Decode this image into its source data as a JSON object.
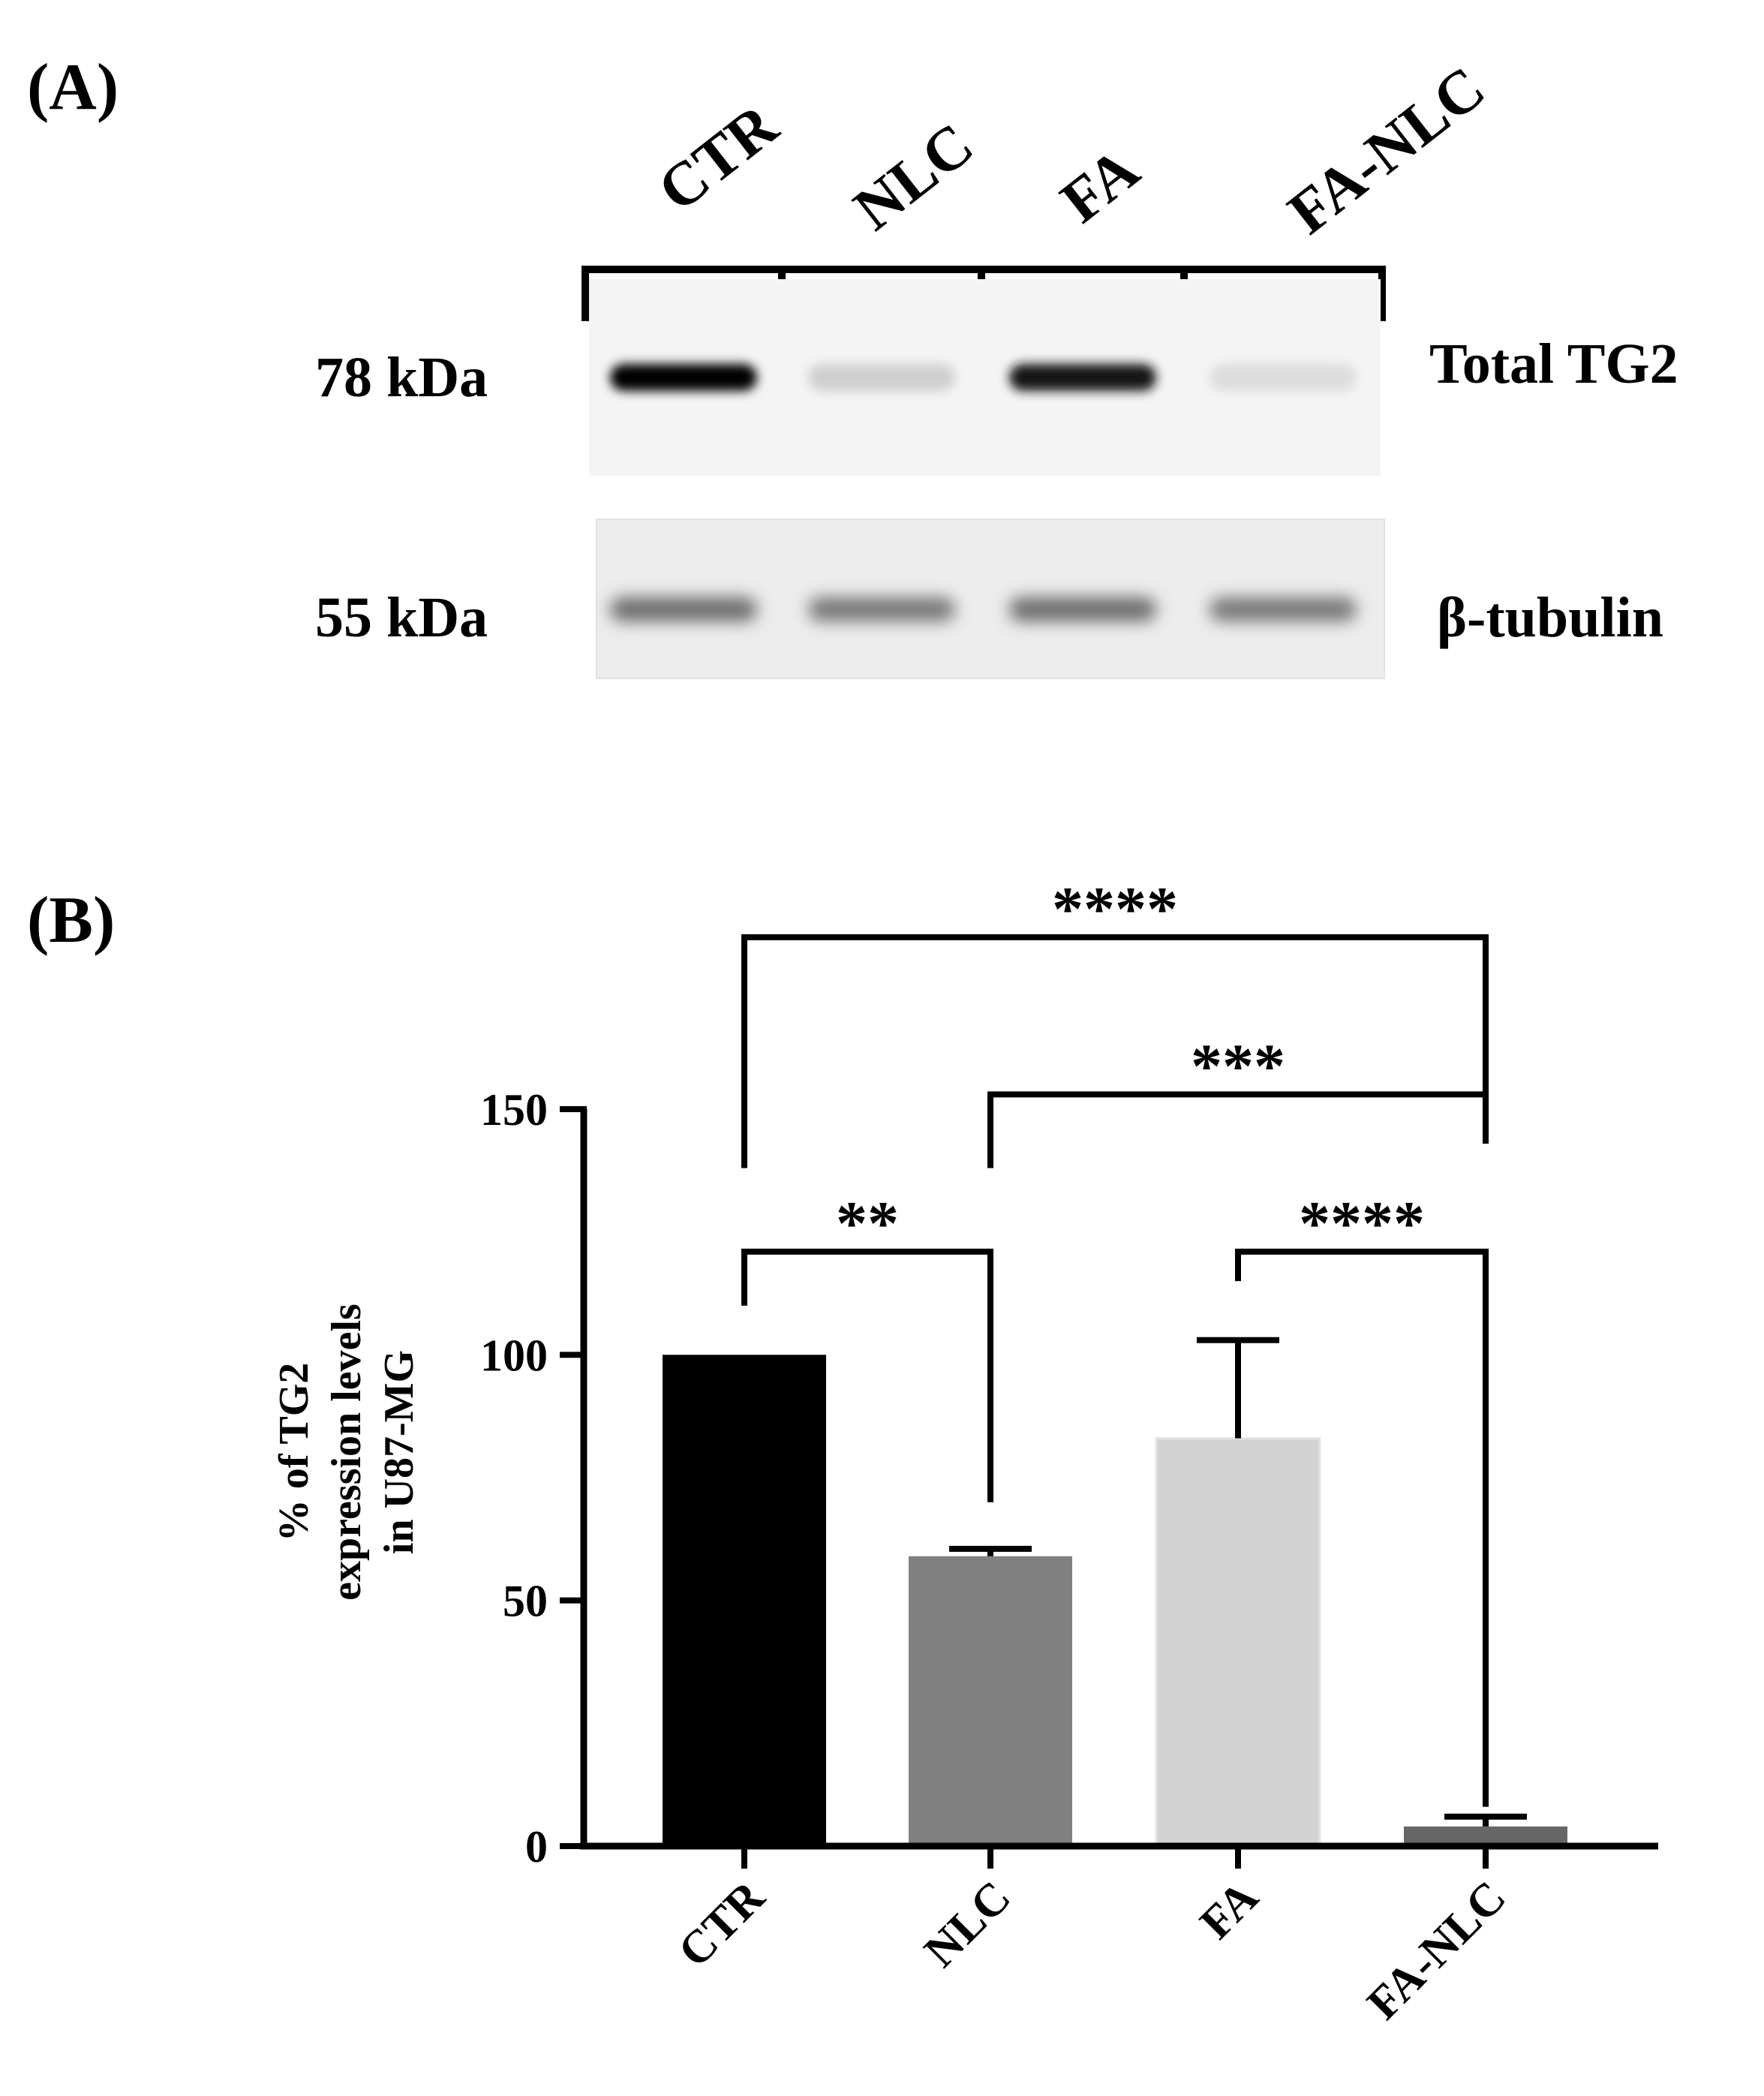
{
  "panel_a": {
    "label": "(A)",
    "lanes": [
      "CTR",
      "NLC",
      "FA",
      "FA-NLC"
    ],
    "blots": [
      {
        "marker": "78 kDa",
        "protein": "Total TG2",
        "intensities": [
          1.0,
          0.12,
          0.9,
          0.06
        ]
      },
      {
        "marker": "55 kDa",
        "protein": "β-tubulin",
        "intensities": [
          0.55,
          0.5,
          0.55,
          0.5
        ]
      }
    ]
  },
  "panel_b": {
    "label": "(B)",
    "chart_data": {
      "type": "bar",
      "categories": [
        "CTR",
        "NLC",
        "FA",
        "FA-NLC"
      ],
      "values": [
        100,
        59,
        83,
        4
      ],
      "errors": [
        0,
        1.5,
        20,
        2
      ],
      "colors": [
        "#000000",
        "#808080",
        "#d3d3d3",
        "#666666"
      ],
      "ylabel": [
        "% of TG2",
        "expression levels",
        "in U87-MG"
      ],
      "ylim": [
        0,
        150
      ],
      "yticks": [
        0,
        50,
        100,
        150
      ],
      "significance": [
        {
          "from": 0,
          "to": 3,
          "label": "****",
          "y": 185
        },
        {
          "from": 1,
          "to": 3,
          "label": "***",
          "y": 153
        },
        {
          "from": 0,
          "to": 1,
          "label": "**",
          "y": 121
        },
        {
          "from": 2,
          "to": 3,
          "label": "****",
          "y": 121
        }
      ]
    }
  }
}
